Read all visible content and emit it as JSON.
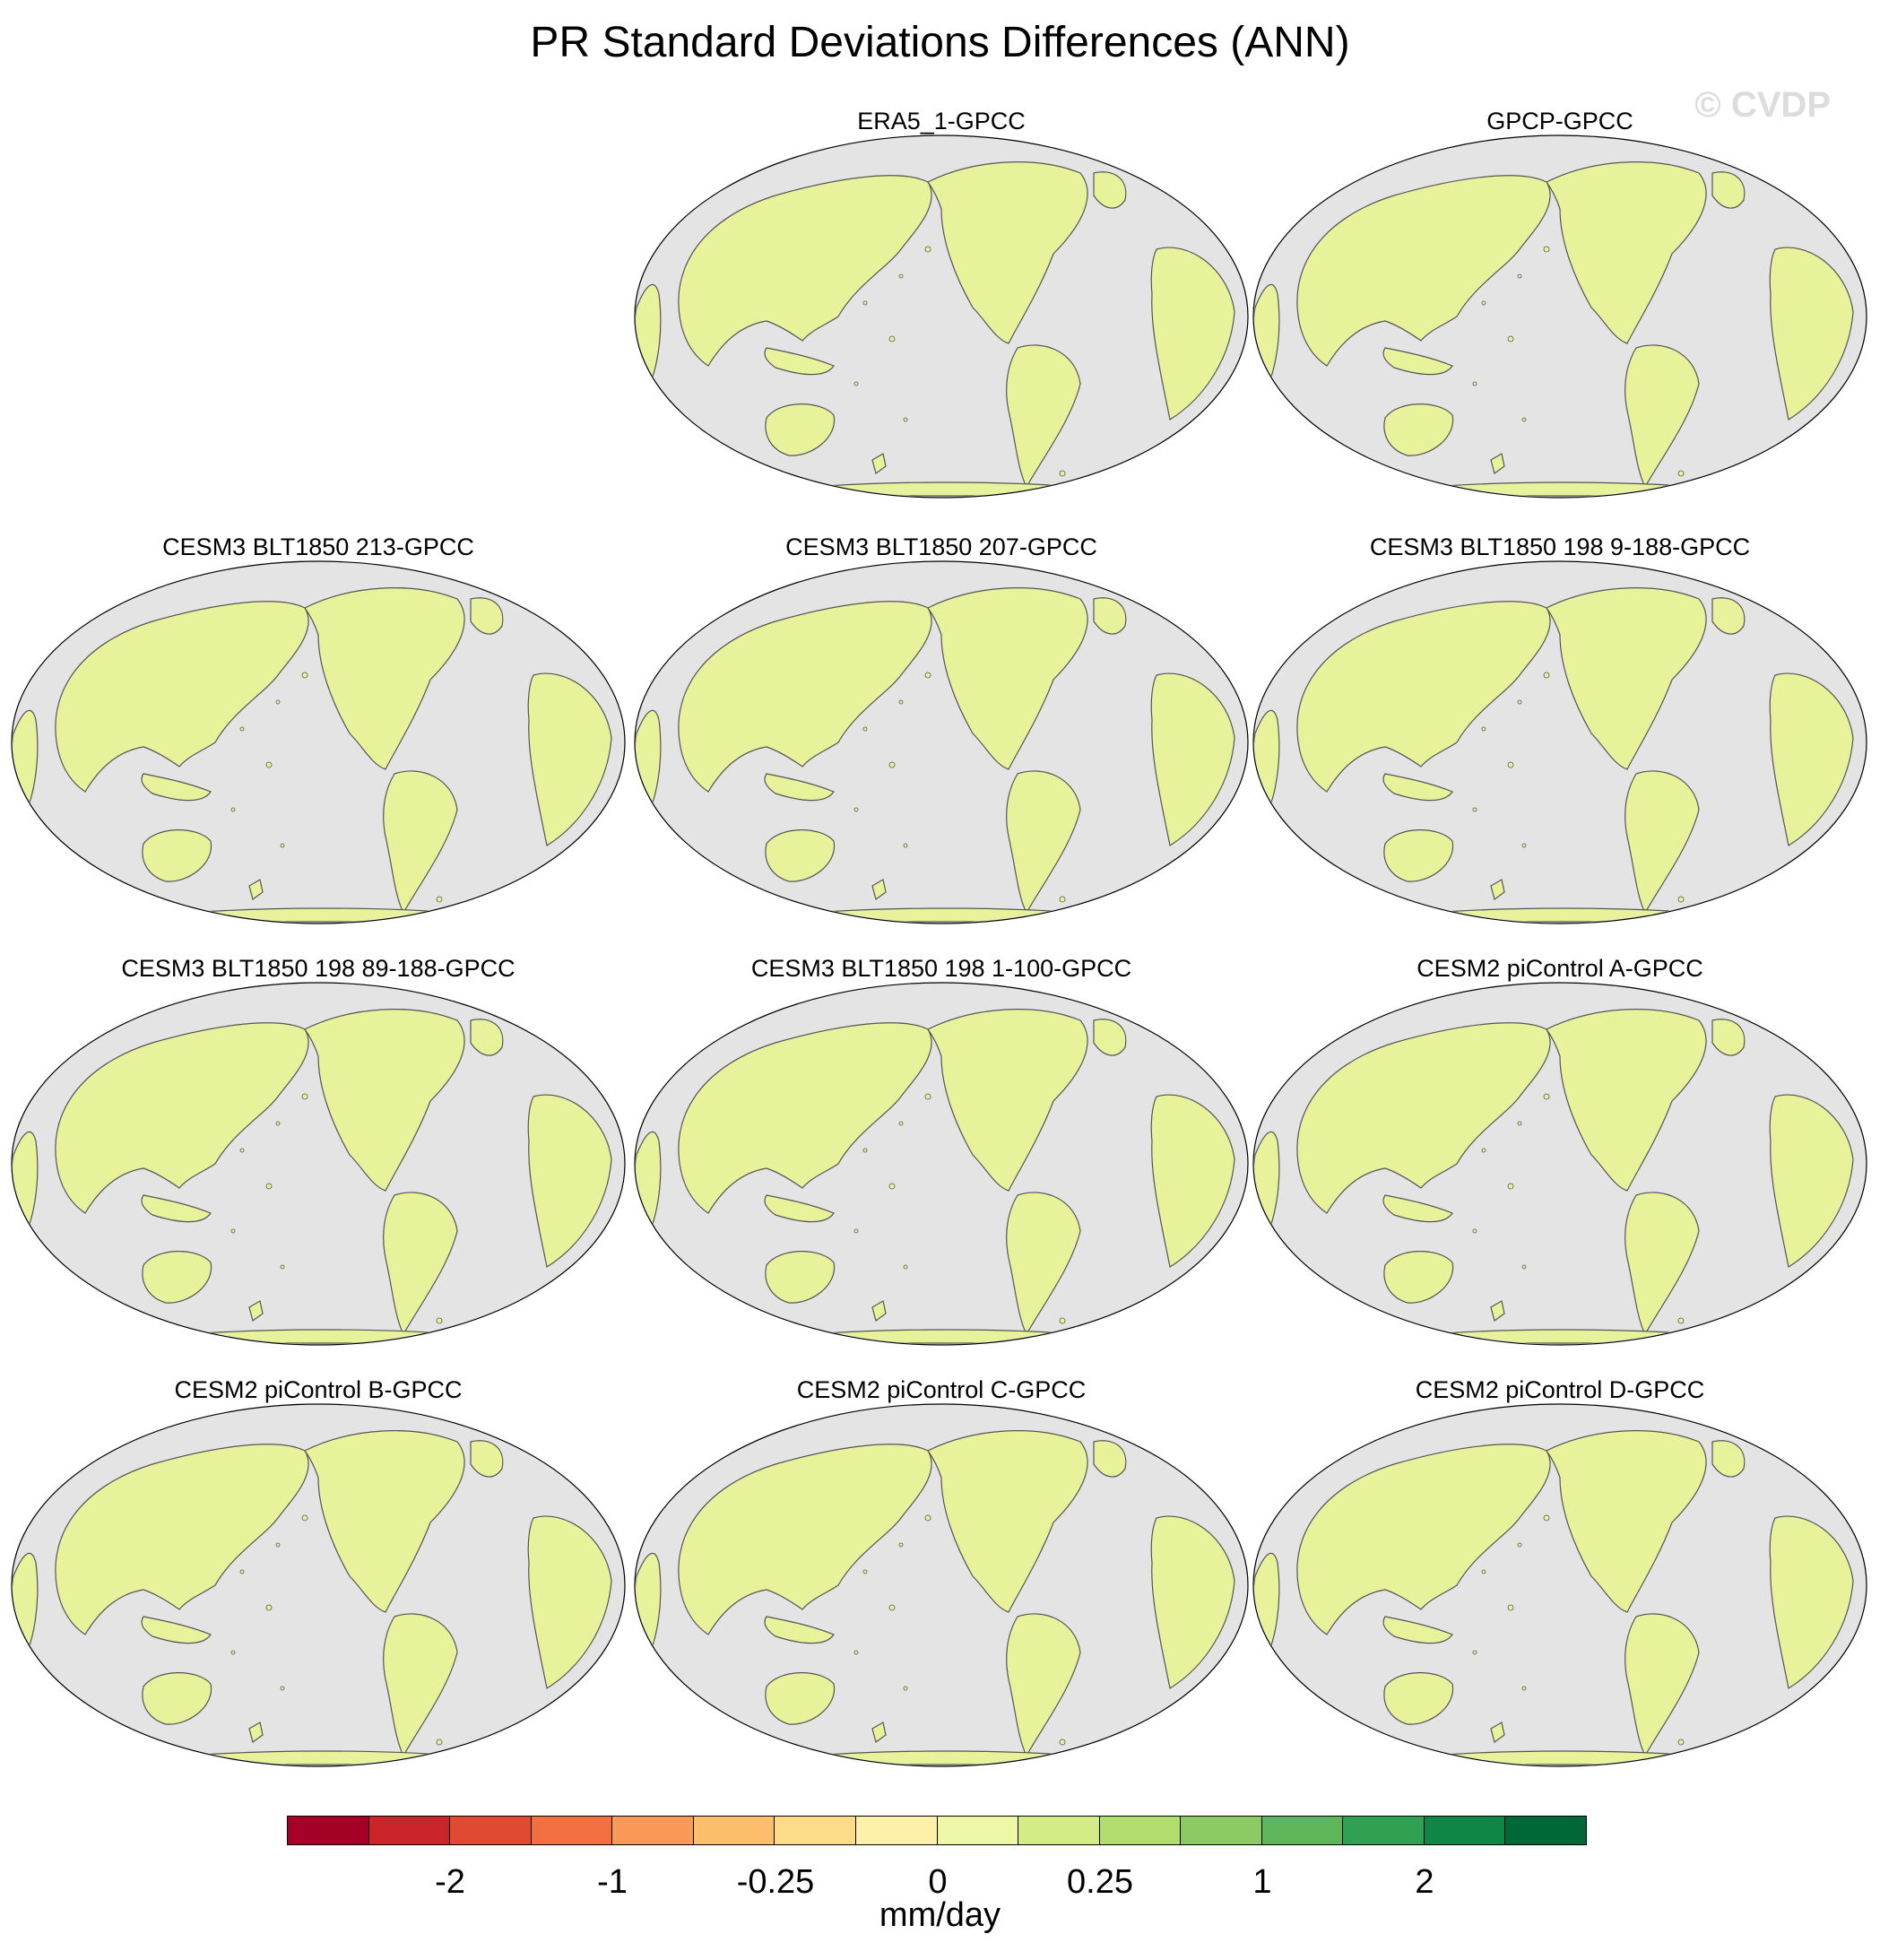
{
  "title": "PR Standard Deviations Differences (ANN)",
  "watermark": "© CVDP",
  "panels": [
    {
      "title": "ERA5_1-GPCC"
    },
    {
      "title": "GPCP-GPCC"
    },
    {
      "title": "CESM3 BLT1850 213-GPCC"
    },
    {
      "title": "CESM3 BLT1850 207-GPCC"
    },
    {
      "title": "CESM3 BLT1850 198 9-188-GPCC"
    },
    {
      "title": "CESM3 BLT1850 198 89-188-GPCC"
    },
    {
      "title": "CESM3 BLT1850 198 1-100-GPCC"
    },
    {
      "title": "CESM2 piControl A-GPCC"
    },
    {
      "title": "CESM2 piControl B-GPCC"
    },
    {
      "title": "CESM2 piControl C-GPCC"
    },
    {
      "title": "CESM2 piControl D-GPCC"
    }
  ],
  "colorbar": {
    "units": "mm/day",
    "tick_labels": [
      "-2",
      "-1",
      "-0.25",
      "0",
      "0.25",
      "1",
      "2"
    ],
    "colors": [
      "#a50026",
      "#c9252a",
      "#e04a33",
      "#f2703f",
      "#f99958",
      "#fbbf6c",
      "#fddb88",
      "#fdf0a8",
      "#eef7a6",
      "#d3ec85",
      "#b2dd6f",
      "#8ccb63",
      "#5fb55a",
      "#31a052",
      "#108646",
      "#006837"
    ]
  },
  "map_colors": {
    "ocean": "#e4e4e4",
    "land": "#e8f29a",
    "coast": "#555555"
  }
}
